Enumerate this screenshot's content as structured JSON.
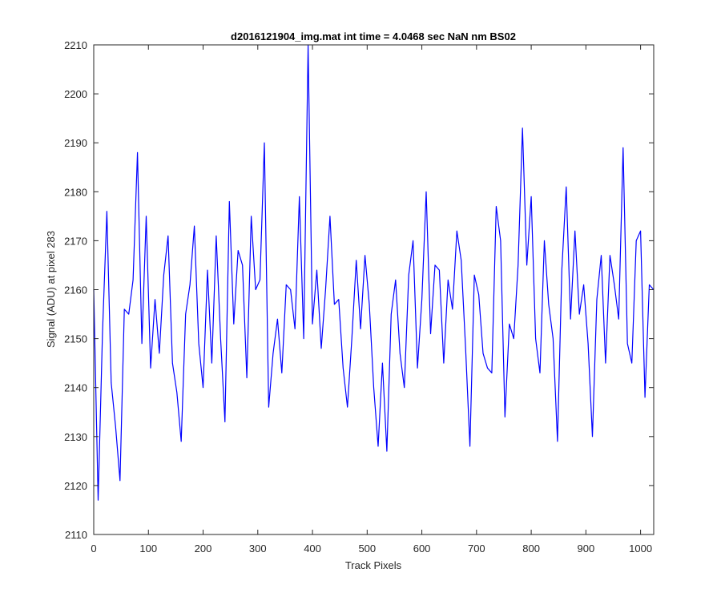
{
  "chart_data": {
    "type": "line",
    "title": "d2016121904_img.mat int time = 4.0468 sec  NaN nm BS02",
    "xlabel": "Track Pixels",
    "ylabel": "Signal (ADU) at pixel 283",
    "xlim": [
      0,
      1024
    ],
    "ylim": [
      2110,
      2210
    ],
    "xticks": [
      0,
      100,
      200,
      300,
      400,
      500,
      600,
      700,
      800,
      900,
      1000
    ],
    "yticks": [
      2110,
      2120,
      2130,
      2140,
      2150,
      2160,
      2170,
      2180,
      2190,
      2200,
      2210
    ],
    "grid": false,
    "line_color": "#0000ff",
    "series": [
      {
        "x_start": 0,
        "x_step": 8,
        "values": [
          2160,
          2117,
          2151,
          2176,
          2141,
          2132,
          2121,
          2156,
          2155,
          2162,
          2188,
          2149,
          2175,
          2144,
          2158,
          2147,
          2163,
          2171,
          2145,
          2139,
          2129,
          2155,
          2161,
          2173,
          2149,
          2140,
          2164,
          2145,
          2171,
          2150,
          2133,
          2178,
          2153,
          2168,
          2165,
          2142,
          2175,
          2160,
          2162,
          2190,
          2136,
          2147,
          2154,
          2143,
          2161,
          2160,
          2152,
          2179,
          2150,
          2210,
          2153,
          2164,
          2148,
          2160,
          2175,
          2157,
          2158,
          2144,
          2136,
          2150,
          2166,
          2152,
          2167,
          2157,
          2140,
          2128,
          2145,
          2127,
          2155,
          2162,
          2147,
          2140,
          2163,
          2170,
          2144,
          2158,
          2180,
          2151,
          2165,
          2164,
          2145,
          2162,
          2156,
          2172,
          2166,
          2148,
          2128,
          2163,
          2159,
          2147,
          2144,
          2143,
          2177,
          2170,
          2134,
          2153,
          2150,
          2165,
          2193,
          2165,
          2179,
          2150,
          2143,
          2170,
          2157,
          2150,
          2129,
          2164,
          2181,
          2154,
          2172,
          2155,
          2161,
          2149,
          2130,
          2158,
          2167,
          2145,
          2167,
          2161,
          2154,
          2189,
          2149,
          2145,
          2170,
          2172,
          2138,
          2161,
          2160
        ]
      }
    ]
  }
}
